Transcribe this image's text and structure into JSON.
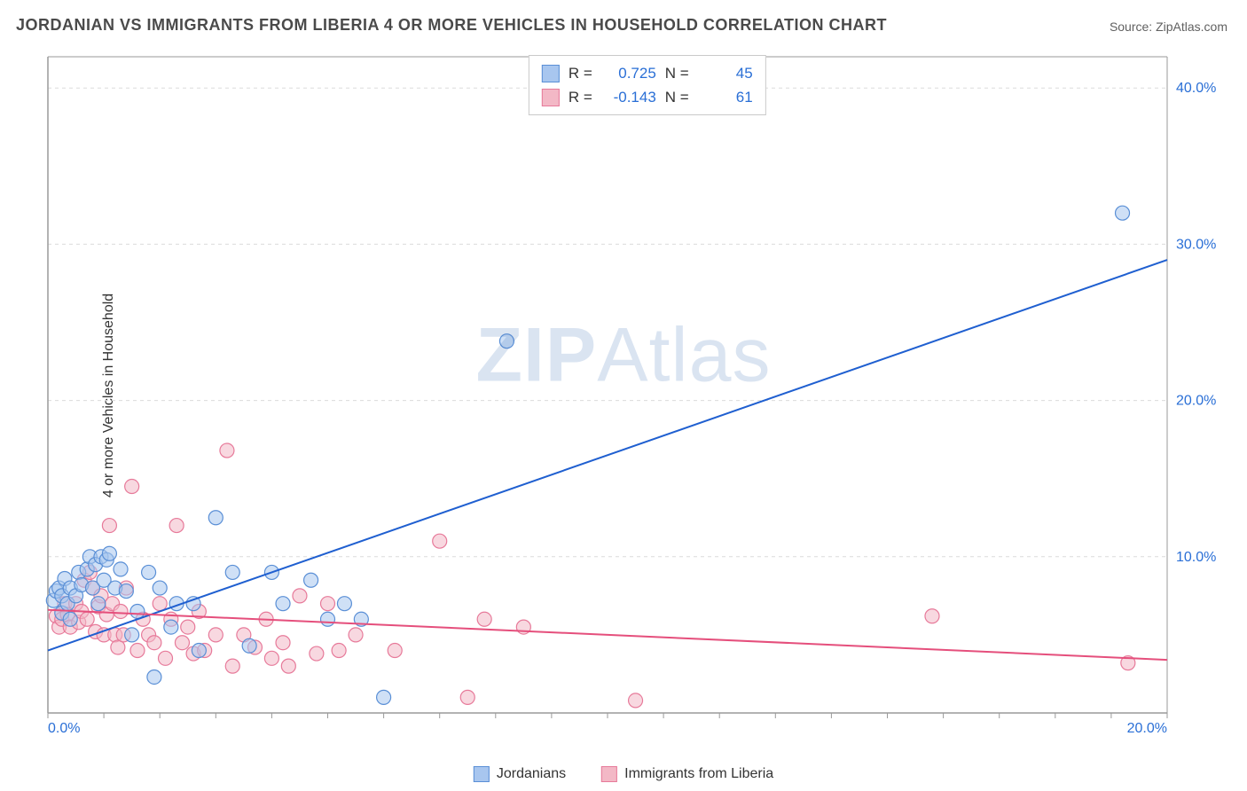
{
  "title": "JORDANIAN VS IMMIGRANTS FROM LIBERIA 4 OR MORE VEHICLES IN HOUSEHOLD CORRELATION CHART",
  "source": "Source: ZipAtlas.com",
  "ylabel": "4 or more Vehicles in Household",
  "watermark_a": "ZIP",
  "watermark_b": "Atlas",
  "chart": {
    "type": "scatter",
    "background_color": "#ffffff",
    "grid_color": "#dcdcdc",
    "axis_color": "#9a9a9a",
    "xlim": [
      0,
      20
    ],
    "ylim": [
      0,
      42
    ],
    "xticks": [
      0,
      20
    ],
    "xtick_labels": [
      "0.0%",
      "20.0%"
    ],
    "yticks": [
      10,
      20,
      30,
      40
    ],
    "ytick_labels": [
      "10.0%",
      "20.0%",
      "30.0%",
      "40.0%"
    ],
    "marker_radius": 8,
    "marker_opacity": 0.55,
    "line_width": 2,
    "series": [
      {
        "name": "Jordanians",
        "color_fill": "#a8c6ef",
        "color_stroke": "#5a8fd6",
        "line_color": "#1f5fd0",
        "R": "0.725",
        "N": "45",
        "trend": {
          "x1": 0,
          "y1": 4.0,
          "x2": 20,
          "y2": 29.0
        },
        "points": [
          [
            0.1,
            7.2
          ],
          [
            0.15,
            7.8
          ],
          [
            0.2,
            8.0
          ],
          [
            0.25,
            6.4
          ],
          [
            0.25,
            7.5
          ],
          [
            0.3,
            8.6
          ],
          [
            0.35,
            7.0
          ],
          [
            0.4,
            8.0
          ],
          [
            0.4,
            6.0
          ],
          [
            0.5,
            7.5
          ],
          [
            0.55,
            9.0
          ],
          [
            0.6,
            8.2
          ],
          [
            0.7,
            9.2
          ],
          [
            0.75,
            10.0
          ],
          [
            0.8,
            8.0
          ],
          [
            0.85,
            9.5
          ],
          [
            0.9,
            7.0
          ],
          [
            0.95,
            10.0
          ],
          [
            1.0,
            8.5
          ],
          [
            1.05,
            9.8
          ],
          [
            1.1,
            10.2
          ],
          [
            1.2,
            8.0
          ],
          [
            1.3,
            9.2
          ],
          [
            1.4,
            7.8
          ],
          [
            1.5,
            5.0
          ],
          [
            1.6,
            6.5
          ],
          [
            1.8,
            9.0
          ],
          [
            1.9,
            2.3
          ],
          [
            2.0,
            8.0
          ],
          [
            2.2,
            5.5
          ],
          [
            2.3,
            7.0
          ],
          [
            2.6,
            7.0
          ],
          [
            2.7,
            4.0
          ],
          [
            3.0,
            12.5
          ],
          [
            3.3,
            9.0
          ],
          [
            3.6,
            4.3
          ],
          [
            4.0,
            9.0
          ],
          [
            4.2,
            7.0
          ],
          [
            4.7,
            8.5
          ],
          [
            5.0,
            6.0
          ],
          [
            5.3,
            7.0
          ],
          [
            5.6,
            6.0
          ],
          [
            6.0,
            1.0
          ],
          [
            8.2,
            23.8
          ],
          [
            19.2,
            32.0
          ]
        ]
      },
      {
        "name": "Immigrants from Liberia",
        "color_fill": "#f3b8c6",
        "color_stroke": "#e77a9a",
        "line_color": "#e54f7c",
        "R": "-0.143",
        "N": "61",
        "trend": {
          "x1": 0,
          "y1": 6.6,
          "x2": 20,
          "y2": 3.4
        },
        "points": [
          [
            0.15,
            6.2
          ],
          [
            0.2,
            5.5
          ],
          [
            0.25,
            6.0
          ],
          [
            0.3,
            7.0
          ],
          [
            0.35,
            6.3
          ],
          [
            0.4,
            5.5
          ],
          [
            0.5,
            7.0
          ],
          [
            0.55,
            5.8
          ],
          [
            0.6,
            6.5
          ],
          [
            0.65,
            8.5
          ],
          [
            0.7,
            6.0
          ],
          [
            0.75,
            9.0
          ],
          [
            0.8,
            8.0
          ],
          [
            0.85,
            5.2
          ],
          [
            0.9,
            6.8
          ],
          [
            0.95,
            7.5
          ],
          [
            1.0,
            5.0
          ],
          [
            1.05,
            6.3
          ],
          [
            1.1,
            12.0
          ],
          [
            1.15,
            7.0
          ],
          [
            1.2,
            5.0
          ],
          [
            1.25,
            4.2
          ],
          [
            1.3,
            6.5
          ],
          [
            1.35,
            5.0
          ],
          [
            1.4,
            8.0
          ],
          [
            1.5,
            14.5
          ],
          [
            1.6,
            4.0
          ],
          [
            1.7,
            6.0
          ],
          [
            1.8,
            5.0
          ],
          [
            1.9,
            4.5
          ],
          [
            2.0,
            7.0
          ],
          [
            2.1,
            3.5
          ],
          [
            2.2,
            6.0
          ],
          [
            2.3,
            12.0
          ],
          [
            2.4,
            4.5
          ],
          [
            2.5,
            5.5
          ],
          [
            2.6,
            3.8
          ],
          [
            2.7,
            6.5
          ],
          [
            2.8,
            4.0
          ],
          [
            3.0,
            5.0
          ],
          [
            3.2,
            16.8
          ],
          [
            3.3,
            3.0
          ],
          [
            3.5,
            5.0
          ],
          [
            3.7,
            4.2
          ],
          [
            3.9,
            6.0
          ],
          [
            4.0,
            3.5
          ],
          [
            4.2,
            4.5
          ],
          [
            4.3,
            3.0
          ],
          [
            4.5,
            7.5
          ],
          [
            4.8,
            3.8
          ],
          [
            5.0,
            7.0
          ],
          [
            5.2,
            4.0
          ],
          [
            5.5,
            5.0
          ],
          [
            6.2,
            4.0
          ],
          [
            7.0,
            11.0
          ],
          [
            7.5,
            1.0
          ],
          [
            7.8,
            6.0
          ],
          [
            8.5,
            5.5
          ],
          [
            10.5,
            0.8
          ],
          [
            15.8,
            6.2
          ],
          [
            19.3,
            3.2
          ]
        ]
      }
    ]
  },
  "legend": {
    "series1_label": "Jordanians",
    "series2_label": "Immigrants from Liberia"
  },
  "statbox": {
    "R_label": "R  =",
    "N_label": "N  ="
  }
}
